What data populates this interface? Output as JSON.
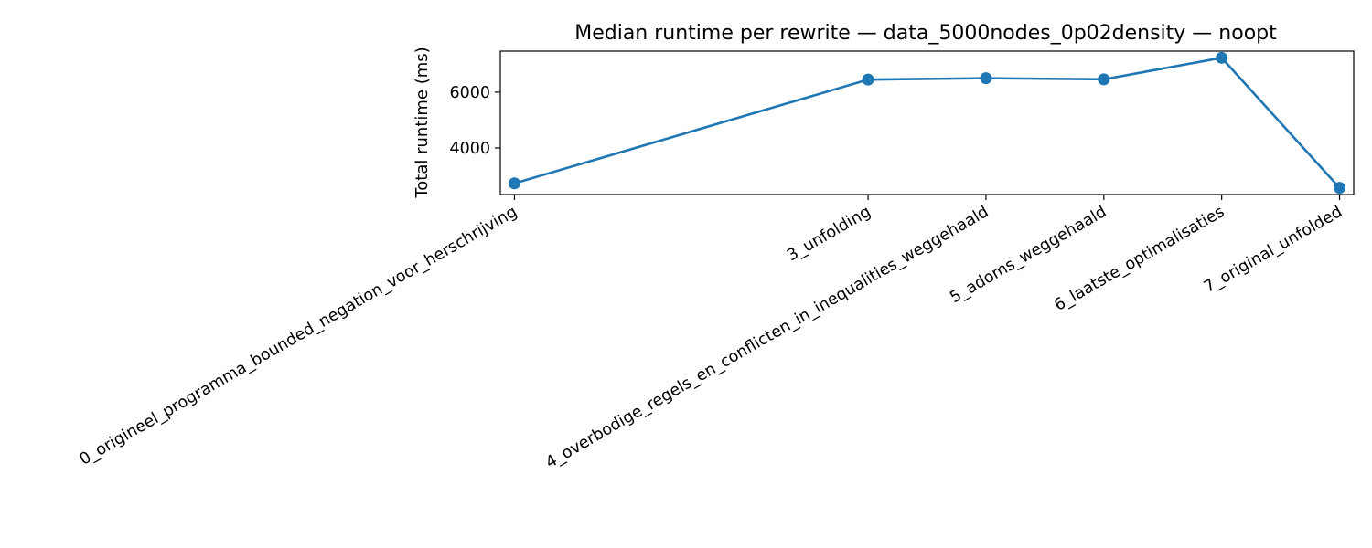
{
  "chart_data": {
    "type": "line",
    "title": "Median runtime per rewrite — data_5000nodes_0p02density — noopt",
    "xlabel": "",
    "ylabel": "Total runtime (ms)",
    "x": [
      0,
      3,
      4,
      5,
      6,
      7
    ],
    "categories": [
      "0_origineel_programma_bounded_negation_voor_herschrijving",
      "3_unfolding",
      "4_overbodige_regels_en_conflicten_in_inequalities_weggehaald",
      "5_adoms_weggehaald",
      "6_laatste_optimalisaties",
      "7_original_unfolded"
    ],
    "series": [
      {
        "values": [
          2730,
          6450,
          6500,
          6460,
          7230,
          2570
        ],
        "color": "#1f77b4"
      }
    ],
    "xlim": [
      -0.12,
      7.12
    ],
    "ylim": [
      2330,
      7470
    ],
    "yticks": [
      4000,
      6000
    ],
    "ytick_labels": [
      "4000",
      "6000"
    ],
    "grid": false,
    "legend": "none"
  }
}
